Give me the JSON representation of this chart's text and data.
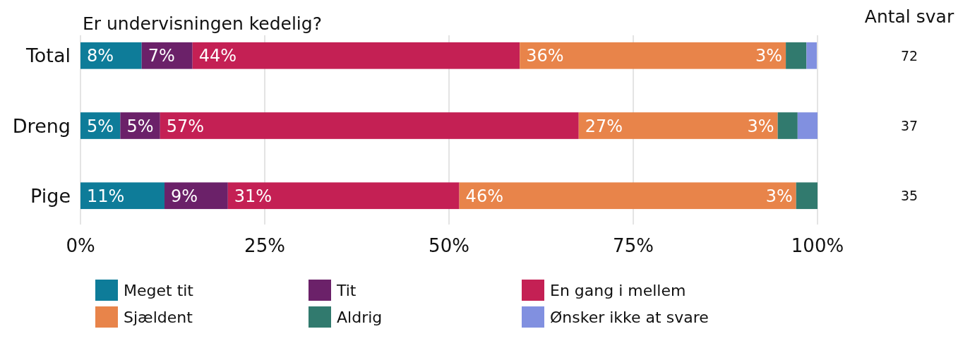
{
  "chart_data": {
    "type": "bar",
    "orientation": "horizontal",
    "stacked": true,
    "title": "Er undervisningen kedelig?",
    "categories": [
      "Total",
      "Dreng",
      "Pige"
    ],
    "series": [
      {
        "name": "Meget tit",
        "color": "#0e7c99",
        "values": [
          8.3,
          5.4,
          11.4
        ],
        "value_labels": [
          "8%",
          "5%",
          "11%"
        ]
      },
      {
        "name": "Tit",
        "color": "#6b2169",
        "values": [
          6.9,
          5.4,
          8.6
        ],
        "value_labels": [
          "7%",
          "5%",
          "9%"
        ]
      },
      {
        "name": "En gang i mellem",
        "color": "#c42054",
        "values": [
          44.4,
          56.8,
          31.4
        ],
        "value_labels": [
          "44%",
          "57%",
          "31%"
        ]
      },
      {
        "name": "Sjældent",
        "color": "#e8844a",
        "values": [
          36.1,
          27.0,
          45.7
        ],
        "value_labels": [
          "36%",
          "27%",
          "46%"
        ]
      },
      {
        "name": "Aldrig",
        "color": "#317a6e",
        "values": [
          2.8,
          2.7,
          2.9
        ],
        "value_labels": [
          "3%",
          "3%",
          "3%"
        ]
      },
      {
        "name": "Ønsker ikke at svare",
        "color": "#8190e0",
        "values": [
          1.4,
          2.7,
          0
        ],
        "value_labels": [
          null,
          null,
          null
        ]
      }
    ],
    "xlim": [
      0,
      100
    ],
    "xticks": [
      {
        "value": 0,
        "label": "0%"
      },
      {
        "value": 25,
        "label": "25%"
      },
      {
        "value": 50,
        "label": "50%"
      },
      {
        "value": 75,
        "label": "75%"
      },
      {
        "value": 100,
        "label": "100%"
      }
    ],
    "grid": "x",
    "legend": "bottom",
    "annotations": [
      "Antal svar",
      "72",
      "37",
      "35"
    ]
  }
}
